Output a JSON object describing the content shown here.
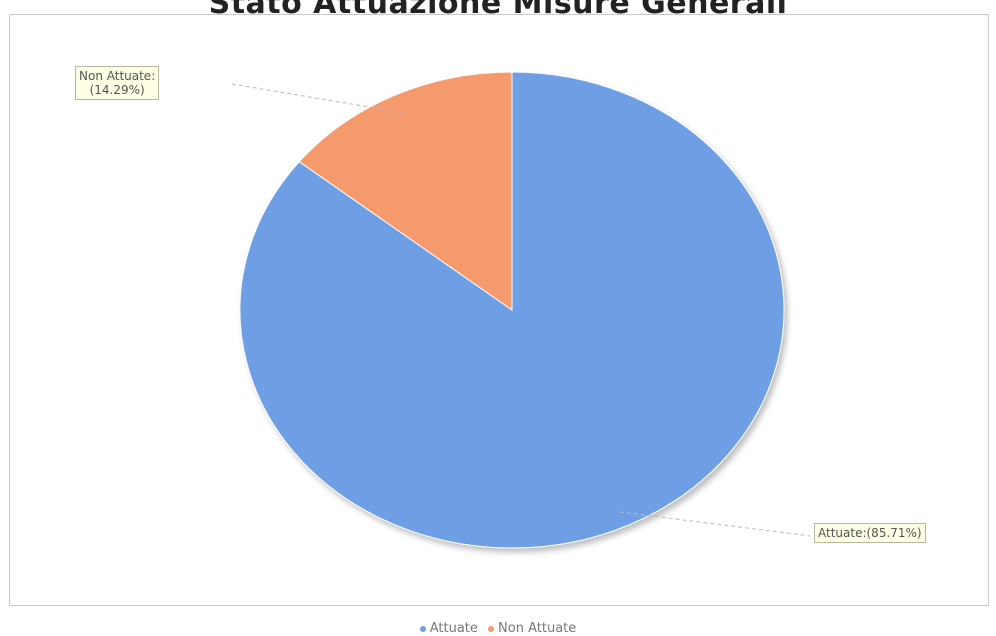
{
  "chart_data": {
    "type": "pie",
    "title": "Stato Attuazione Misure Generali",
    "slices": [
      {
        "name": "Attuate",
        "value": 85.71,
        "color": "#6e9fe5",
        "label": "Attuate:(85.71%)"
      },
      {
        "name": "Non Attuate",
        "value": 14.29,
        "color": "#f59a6c",
        "label_line1": "Non Attuate:",
        "label_line2": "(14.29%)"
      }
    ],
    "legend": [
      "Attuate",
      "Non Attuate"
    ],
    "legend_placement": "bottom"
  }
}
